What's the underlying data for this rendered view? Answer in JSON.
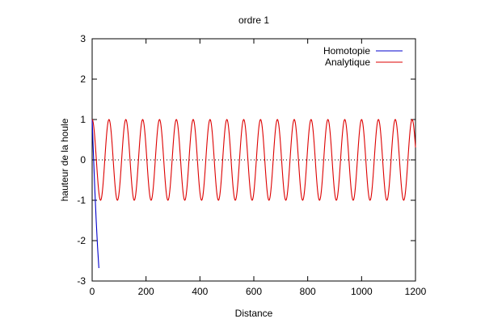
{
  "chart_data": {
    "type": "line",
    "title": "ordre 1",
    "xlabel": "Distance",
    "ylabel": "hauteur de la houle",
    "xlim": [
      0,
      1200
    ],
    "ylim": [
      -3,
      3
    ],
    "xticks": [
      0,
      200,
      400,
      600,
      800,
      1000,
      1200
    ],
    "xtick_labels": [
      "0",
      "200",
      "400",
      "600",
      "800",
      "1000",
      "1200"
    ],
    "yticks": [
      -3,
      -2,
      -1,
      0,
      1,
      2,
      3
    ],
    "ytick_labels": [
      "-3",
      "-2",
      "-1",
      "0",
      "1",
      "2",
      "3"
    ],
    "zero_line": true,
    "grid": false,
    "legend_position": "top-right",
    "series": [
      {
        "name": "Homotopie",
        "color": "#0000cc",
        "x": [
          0,
          5,
          10,
          15,
          20,
          25
        ],
        "y": [
          1.0,
          0.1,
          -0.75,
          -1.5,
          -2.15,
          -2.68
        ]
      },
      {
        "name": "Analytique",
        "color": "#dd0000",
        "function": "cosine",
        "amplitude": 1,
        "period": 62.5,
        "x_range": [
          0,
          1200
        ]
      }
    ]
  }
}
